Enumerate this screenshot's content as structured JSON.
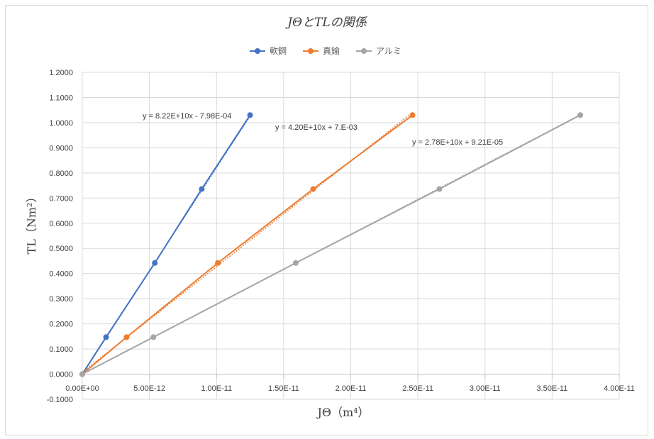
{
  "chart_data": {
    "type": "scatter",
    "title": "JΘとTLの関係",
    "xlabel": "JΘ（m⁴）",
    "ylabel": "TL（Nm²）",
    "xlim": [
      0,
      4e-11
    ],
    "ylim": [
      -0.1,
      1.2
    ],
    "x_ticks": [
      "0.00E+00",
      "5.00E-12",
      "1.00E-11",
      "1.50E-11",
      "2.00E-11",
      "2.50E-11",
      "3.00E-11",
      "3.50E-11",
      "4.00E-11"
    ],
    "y_ticks": [
      "-0.1000",
      "0.0000",
      "0.1000",
      "0.2000",
      "0.3000",
      "0.4000",
      "0.5000",
      "0.6000",
      "0.7000",
      "0.8000",
      "0.9000",
      "1.0000",
      "1.1000",
      "1.2000"
    ],
    "grid": true,
    "legend_position": "top",
    "series": [
      {
        "name": "軟鋼",
        "color": "#4472c4",
        "x": [
          0,
          1.77e-12,
          5.4e-12,
          8.9e-12,
          1.25e-11
        ],
        "y": [
          0,
          0.147,
          0.442,
          0.736,
          1.03
        ],
        "trendline": "y = 8.22E+10x - 7.98E-04",
        "trend_slope": 82200000000.0,
        "trend_intercept": -0.000798
      },
      {
        "name": "真鍮",
        "color": "#ed7d31",
        "x": [
          0,
          3.3e-12,
          1.01e-11,
          1.72e-11,
          2.46e-11
        ],
        "y": [
          0,
          0.147,
          0.442,
          0.736,
          1.03
        ],
        "trendline": "y = 4.20E+10x + 7.E-03",
        "trend_slope": 42000000000.0,
        "trend_intercept": 0.007
      },
      {
        "name": "アルミ",
        "color": "#a5a5a5",
        "x": [
          0,
          5.3e-12,
          1.59e-11,
          2.66e-11,
          3.71e-11
        ],
        "y": [
          0,
          0.147,
          0.442,
          0.736,
          1.03
        ],
        "trendline": "y = 2.78E+10x + 9.21E-05",
        "trend_slope": 27800000000.0,
        "trend_intercept": 9.21e-05
      }
    ]
  }
}
